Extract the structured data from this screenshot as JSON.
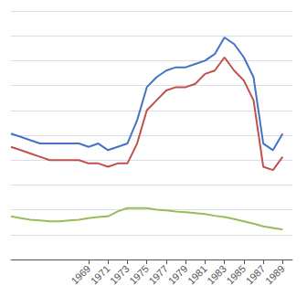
{
  "chart_data": {
    "type": "line",
    "x": [
      1961,
      1962,
      1963,
      1964,
      1965,
      1966,
      1967,
      1968,
      1969,
      1970,
      1971,
      1972,
      1973,
      1974,
      1975,
      1976,
      1977,
      1978,
      1979,
      1980,
      1981,
      1982,
      1983,
      1984,
      1985,
      1986,
      1987,
      1988,
      1989
    ],
    "series": [
      {
        "color": "#4472C4",
        "values": [
          3.8,
          3.7,
          3.6,
          3.5,
          3.5,
          3.5,
          3.5,
          3.5,
          3.4,
          3.5,
          3.3,
          3.4,
          3.5,
          4.2,
          5.2,
          5.5,
          5.7,
          5.8,
          5.8,
          5.9,
          6.0,
          6.2,
          6.7,
          6.5,
          6.1,
          5.5,
          3.5,
          3.3,
          3.8
        ]
      },
      {
        "color": "#C0504D",
        "values": [
          3.4,
          3.3,
          3.2,
          3.1,
          3.0,
          3.0,
          3.0,
          3.0,
          2.9,
          2.9,
          2.8,
          2.9,
          2.9,
          3.5,
          4.5,
          4.8,
          5.1,
          5.2,
          5.2,
          5.3,
          5.6,
          5.7,
          6.1,
          5.7,
          5.4,
          4.8,
          2.8,
          2.7,
          3.1
        ]
      },
      {
        "color": "#9BBB59",
        "values": [
          1.3,
          1.25,
          1.2,
          1.18,
          1.15,
          1.15,
          1.18,
          1.2,
          1.25,
          1.28,
          1.3,
          1.45,
          1.55,
          1.55,
          1.55,
          1.5,
          1.48,
          1.45,
          1.43,
          1.4,
          1.37,
          1.32,
          1.28,
          1.22,
          1.15,
          1.08,
          1.0,
          0.95,
          0.9
        ]
      }
    ],
    "xlim": [
      1961,
      1990
    ],
    "xticks": [
      1969,
      1971,
      1973,
      1975,
      1977,
      1979,
      1981,
      1983,
      1985,
      1987,
      1989
    ],
    "ylim": [
      0,
      7.5
    ],
    "yticks": [
      0,
      0.75,
      1.5,
      2.25,
      3,
      3.75,
      4.5,
      5.25,
      6,
      6.75,
      7.5
    ],
    "grid": true,
    "tick_labels": "x"
  }
}
